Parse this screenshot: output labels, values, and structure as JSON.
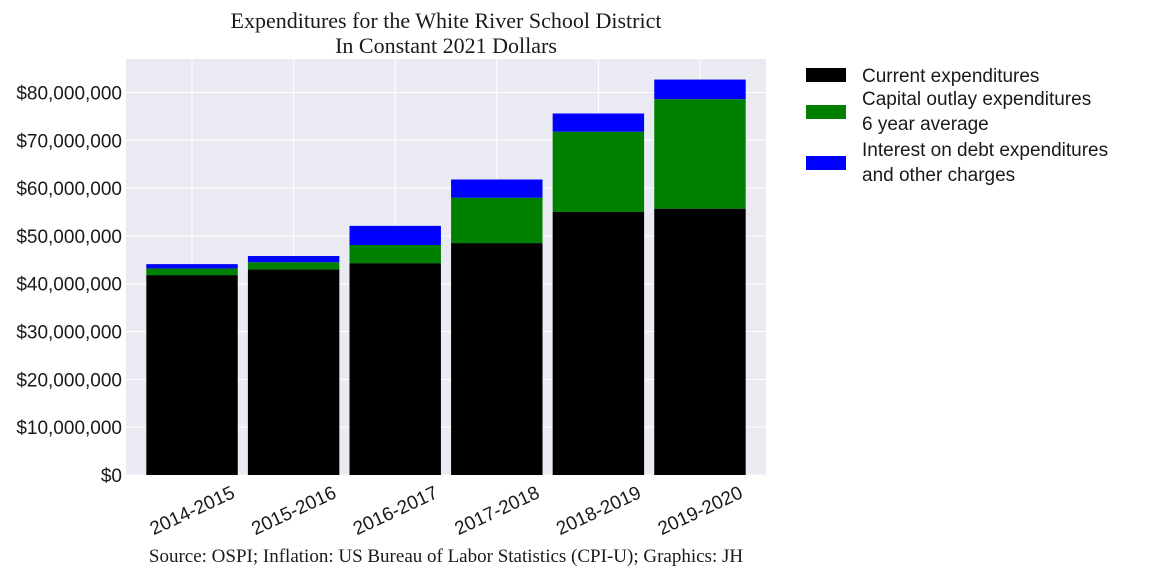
{
  "chart_data": {
    "type": "bar",
    "stacked": true,
    "title": "Expenditures for the White River School District",
    "subtitle": "In Constant 2021 Dollars",
    "source": "Source: OSPI; Inflation: US Bureau of Labor Statistics (CPI-U); Graphics: JH",
    "categories": [
      "2014-2015",
      "2015-2016",
      "2016-2017",
      "2017-2018",
      "2018-2019",
      "2019-2020"
    ],
    "series": [
      {
        "legend_lines": [
          "Current expenditures"
        ],
        "color": "#000000",
        "values": [
          41800000,
          43000000,
          44300000,
          48500000,
          55000000,
          55700000
        ]
      },
      {
        "legend_lines": [
          "Capital outlay expenditures",
          "6 year average"
        ],
        "color": "#008000",
        "values": [
          1400000,
          1500000,
          3800000,
          9500000,
          16800000,
          22900000
        ]
      },
      {
        "legend_lines": [
          "Interest on debt expenditures",
          "and other charges"
        ],
        "color": "#0000ff",
        "values": [
          900000,
          1300000,
          4000000,
          3800000,
          3800000,
          4100000
        ]
      }
    ],
    "y_ticks": [
      0,
      10000000,
      20000000,
      30000000,
      40000000,
      50000000,
      60000000,
      70000000,
      80000000
    ],
    "y_tick_labels": [
      "$0",
      "$10,000,000",
      "$20,000,000",
      "$30,000,000",
      "$40,000,000",
      "$50,000,000",
      "$60,000,000",
      "$70,000,000",
      "$80,000,000"
    ],
    "ylim": [
      0,
      87000000
    ],
    "grid": true,
    "legend_position": "outside-right",
    "colors": {
      "plot_background": "#eaeaf2",
      "grid": "#ffffff",
      "text": "#1a1a1a"
    }
  }
}
